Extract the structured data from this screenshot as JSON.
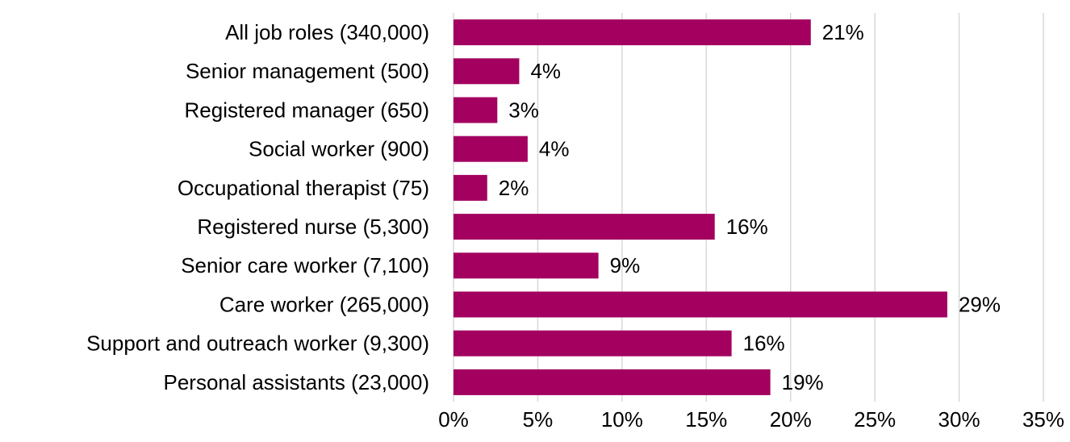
{
  "chart_data": {
    "type": "hbar",
    "categories": [
      "All job roles (340,000)",
      "Senior management (500)",
      "Registered manager (650)",
      "Social worker (900)",
      "Occupational therapist (75)",
      "Registered nurse (5,300)",
      "Senior care worker (7,100)",
      "Care worker (265,000)",
      "Support and outreach worker (9,300)",
      "Personal assistants (23,000)"
    ],
    "values": [
      21.2,
      3.9,
      2.6,
      4.4,
      2.0,
      15.5,
      8.6,
      29.3,
      16.5,
      18.8
    ],
    "value_labels": [
      "21%",
      "4%",
      "3%",
      "4%",
      "2%",
      "16%",
      "9%",
      "29%",
      "16%",
      "19%"
    ],
    "color": "#a3005f",
    "xlim": [
      0,
      35
    ],
    "xticks": [
      {
        "value": 0,
        "label": "0%"
      },
      {
        "value": 5,
        "label": "5%"
      },
      {
        "value": 10,
        "label": "10%"
      },
      {
        "value": 15,
        "label": "15%"
      },
      {
        "value": 20,
        "label": "20%"
      },
      {
        "value": 25,
        "label": "25%"
      },
      {
        "value": 30,
        "label": "30%"
      },
      {
        "value": 35,
        "label": "35%"
      }
    ],
    "grid": true
  }
}
